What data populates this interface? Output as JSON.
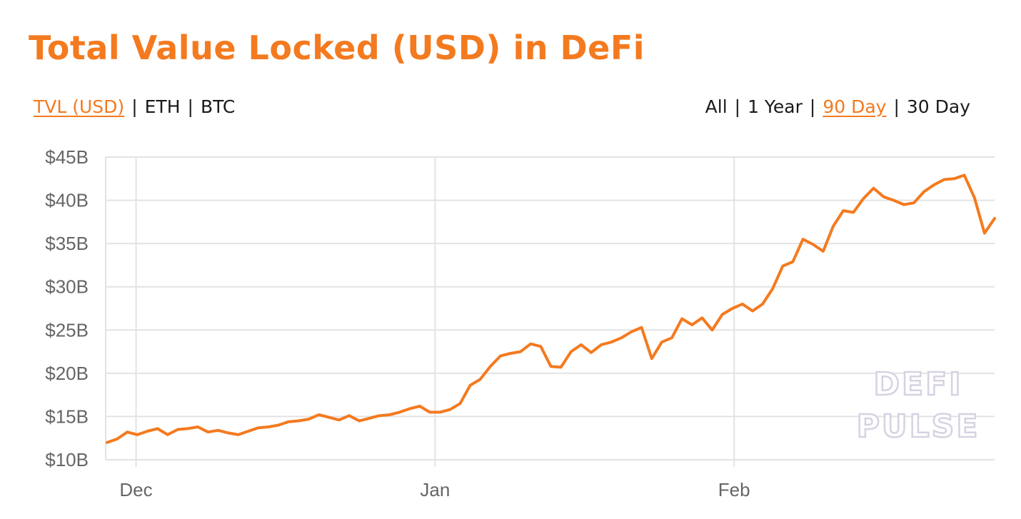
{
  "header": {
    "title": "Total Value Locked (USD) in DeFi"
  },
  "unit_toggles": {
    "items": [
      {
        "label": "TVL (USD)",
        "active": true
      },
      {
        "label": "ETH",
        "active": false
      },
      {
        "label": "BTC",
        "active": false
      }
    ],
    "separator": "|"
  },
  "range_toggles": {
    "items": [
      {
        "label": "All",
        "active": false
      },
      {
        "label": "1 Year",
        "active": false
      },
      {
        "label": "90 Day",
        "active": true
      },
      {
        "label": "30 Day",
        "active": false
      }
    ],
    "separator": "|"
  },
  "watermark": {
    "line1": "DEFI",
    "line2": "PULSE"
  },
  "colors": {
    "accent": "#f47a1f",
    "line": "#f47a1f",
    "grid": "#e3e3e3",
    "tick_text": "#666666"
  },
  "chart_data": {
    "type": "line",
    "x_tick_labels": [
      "Dec",
      "Jan",
      "Feb"
    ],
    "y_tick_labels": [
      "$10B",
      "$15B",
      "$20B",
      "$25B",
      "$30B",
      "$35B",
      "$40B",
      "$45B"
    ],
    "y_ticks": [
      10,
      15,
      20,
      25,
      30,
      35,
      40,
      45
    ],
    "ylim": [
      10,
      45
    ],
    "y_unit": "USD billions",
    "grid": true,
    "legend": "none",
    "x_dates": {
      "start": "2020-11-28",
      "end": "2021-02-28",
      "ticks": [
        "2020-12-01",
        "2021-01-01",
        "2021-02-01"
      ]
    },
    "series": [
      {
        "values": [
          12.0,
          12.4,
          13.2,
          12.9,
          13.3,
          13.6,
          12.9,
          13.5,
          13.6,
          13.8,
          13.2,
          13.4,
          13.1,
          12.9,
          13.3,
          13.7,
          13.8,
          14.0,
          14.4,
          14.5,
          14.7,
          15.2,
          14.9,
          14.6,
          15.1,
          14.5,
          14.8,
          15.1,
          15.2,
          15.5,
          15.9,
          16.2,
          15.5,
          15.5,
          15.8,
          16.5,
          18.6,
          19.3,
          20.8,
          22.0,
          22.3,
          22.5,
          23.4,
          23.1,
          20.8,
          20.7,
          22.5,
          23.3,
          22.4,
          23.3,
          23.6,
          24.1,
          24.8,
          25.3,
          21.7,
          23.6,
          24.1,
          26.3,
          25.6,
          26.4,
          25.0,
          26.8,
          27.5,
          28.0,
          27.2,
          28.0,
          29.8,
          32.4,
          32.9,
          35.5,
          34.9,
          34.1,
          37.0,
          38.8,
          38.6,
          40.2,
          41.4,
          40.4,
          40.0,
          39.5,
          39.7,
          41.0,
          41.8,
          42.4,
          42.5,
          42.9,
          40.3,
          36.2,
          37.9
        ]
      }
    ]
  }
}
